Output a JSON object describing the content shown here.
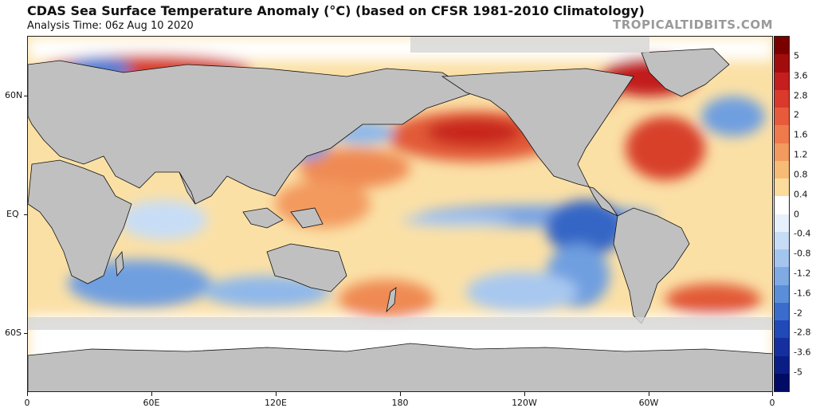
{
  "header": {
    "title": "CDAS Sea Surface Temperature Anomaly (°C) (based on CFSR 1981-2010 Climatology)",
    "subtitle": "Analysis Time: 06z Aug 10 2020",
    "brand": "TROPICALTIDBITS.COM"
  },
  "map": {
    "lat_labels": [
      "60N",
      "EQ",
      "60S"
    ],
    "lon_labels": [
      "0",
      "60E",
      "120E",
      "180",
      "120W",
      "60W",
      "0"
    ],
    "land_color": "#c0c0c0",
    "coast_color": "#111111"
  },
  "colorbar": {
    "labels": [
      "5",
      "3.6",
      "2.8",
      "2",
      "1.6",
      "1.2",
      "0.8",
      "0.4",
      "0",
      "-0.4",
      "-0.8",
      "-1.2",
      "-1.6",
      "-2",
      "-2.8",
      "-3.6",
      "-5"
    ],
    "colors": [
      "#7a0000",
      "#a30c0c",
      "#c41e1e",
      "#d93a2b",
      "#e85a3c",
      "#ef7a4c",
      "#f39a5e",
      "#f7bb78",
      "#fcdc9c",
      "#ffffff",
      "#e6f1fb",
      "#c7ddf6",
      "#a4c6ee",
      "#7faae4",
      "#5b8ed8",
      "#3a6ccc",
      "#2249b8",
      "#15309e",
      "#0a1d85",
      "#000b66"
    ]
  }
}
